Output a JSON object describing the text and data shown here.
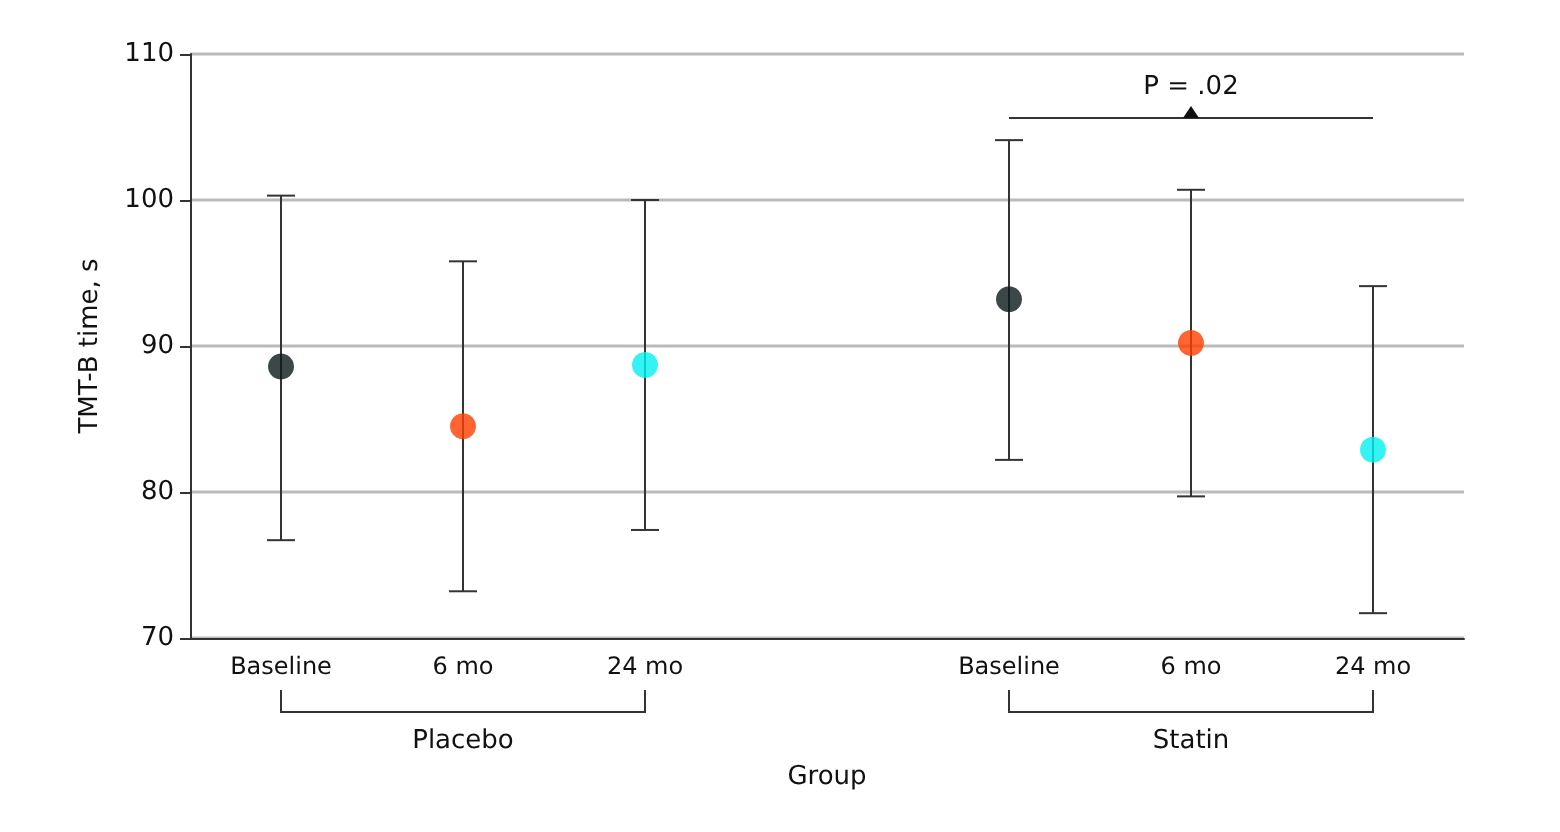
{
  "chart_data": {
    "type": "scatter",
    "xlabel": "Group",
    "ylabel": "TMT-B time, s",
    "categories": [
      "Baseline",
      "6 mo",
      "24 mo",
      null,
      "Baseline",
      "6 mo",
      "24 mo"
    ],
    "values": [
      88.6,
      84.5,
      88.7,
      null,
      93.2,
      90.2,
      82.9
    ],
    "colors": [
      "#0b1a1a",
      "#ff3d00",
      "#00f0f0",
      null,
      "#0b1a1a",
      "#ff3d00",
      "#00f0f0"
    ],
    "errors": [
      [
        76.7,
        100.3
      ],
      [
        73.2,
        95.8
      ],
      [
        77.4,
        100.0
      ],
      null,
      [
        82.2,
        104.1
      ],
      [
        79.7,
        100.7
      ],
      [
        71.7,
        94.1
      ]
    ],
    "ylim": [
      70,
      110
    ],
    "yticks": [
      70,
      80,
      90,
      100,
      110
    ],
    "grid": "y",
    "marker": "circle",
    "annotations": [
      "Placebo",
      "Statin",
      "P = .02"
    ]
  }
}
